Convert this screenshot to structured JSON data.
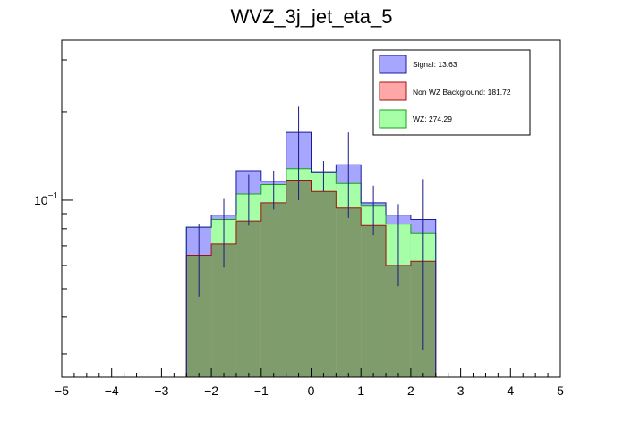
{
  "chart_data": {
    "type": "bar",
    "title": "WVZ_3j_jet_eta_5",
    "xlabel": "",
    "ylabel": "",
    "xlim": [
      -5,
      5
    ],
    "ylog": true,
    "ylim": [
      0.025,
      0.35
    ],
    "grid": false,
    "legend_position": "top-right",
    "x_tick_labels": [
      "−5",
      "−4",
      "−3",
      "−2",
      "−1",
      "0",
      "1",
      "2",
      "3",
      "4",
      "5"
    ],
    "y_tick_label": "10^{-1}",
    "bins": [
      [
        -2.5,
        -2.0
      ],
      [
        -2.0,
        -1.5
      ],
      [
        -1.5,
        -1.0
      ],
      [
        -1.0,
        -0.5
      ],
      [
        -0.5,
        0.0
      ],
      [
        0.0,
        0.5
      ],
      [
        0.5,
        1.0
      ],
      [
        1.0,
        1.5
      ],
      [
        1.5,
        2.0
      ],
      [
        2.0,
        2.5
      ]
    ],
    "series": [
      {
        "name": "WZ",
        "legend_label": "WZ: 274.29",
        "fill": "#a6ffa6",
        "line": "#1a9e1a",
        "values": [
          0.081,
          0.086,
          0.105,
          0.113,
          0.128,
          0.124,
          0.114,
          0.096,
          0.083,
          0.077
        ]
      },
      {
        "name": "Non WZ Background",
        "legend_label": "Non WZ Background: 181.72",
        "fill": "#ffa6a6",
        "line": "#a01010",
        "values": [
          0.065,
          0.071,
          0.085,
          0.098,
          0.117,
          0.107,
          0.094,
          0.082,
          0.06,
          0.062
        ]
      },
      {
        "name": "Signal",
        "legend_label": "Signal: 13.63",
        "fill": "#a6a6ff",
        "line": "#1a1aa0",
        "values": [
          0.081,
          0.089,
          0.126,
          0.116,
          0.17,
          0.125,
          0.132,
          0.098,
          0.089,
          0.086
        ]
      }
    ],
    "error_bars": [
      {
        "x": -2.25,
        "y": 0.065,
        "lo": 0.047,
        "hi": 0.083
      },
      {
        "x": -1.75,
        "y": 0.078,
        "lo": 0.059,
        "hi": 0.101
      },
      {
        "x": -1.25,
        "y": 0.101,
        "lo": 0.082,
        "hi": 0.122
      },
      {
        "x": -0.75,
        "y": 0.108,
        "lo": 0.093,
        "hi": 0.126
      },
      {
        "x": -0.25,
        "y": 0.145,
        "lo": 0.1,
        "hi": 0.208
      },
      {
        "x": 0.25,
        "y": 0.121,
        "lo": 0.107,
        "hi": 0.136
      },
      {
        "x": 0.75,
        "y": 0.125,
        "lo": 0.087,
        "hi": 0.17
      },
      {
        "x": 1.25,
        "y": 0.093,
        "lo": 0.076,
        "hi": 0.112
      },
      {
        "x": 1.75,
        "y": 0.074,
        "lo": 0.051,
        "hi": 0.097
      },
      {
        "x": 2.25,
        "y": 0.072,
        "lo": 0.031,
        "hi": 0.118
      }
    ]
  }
}
